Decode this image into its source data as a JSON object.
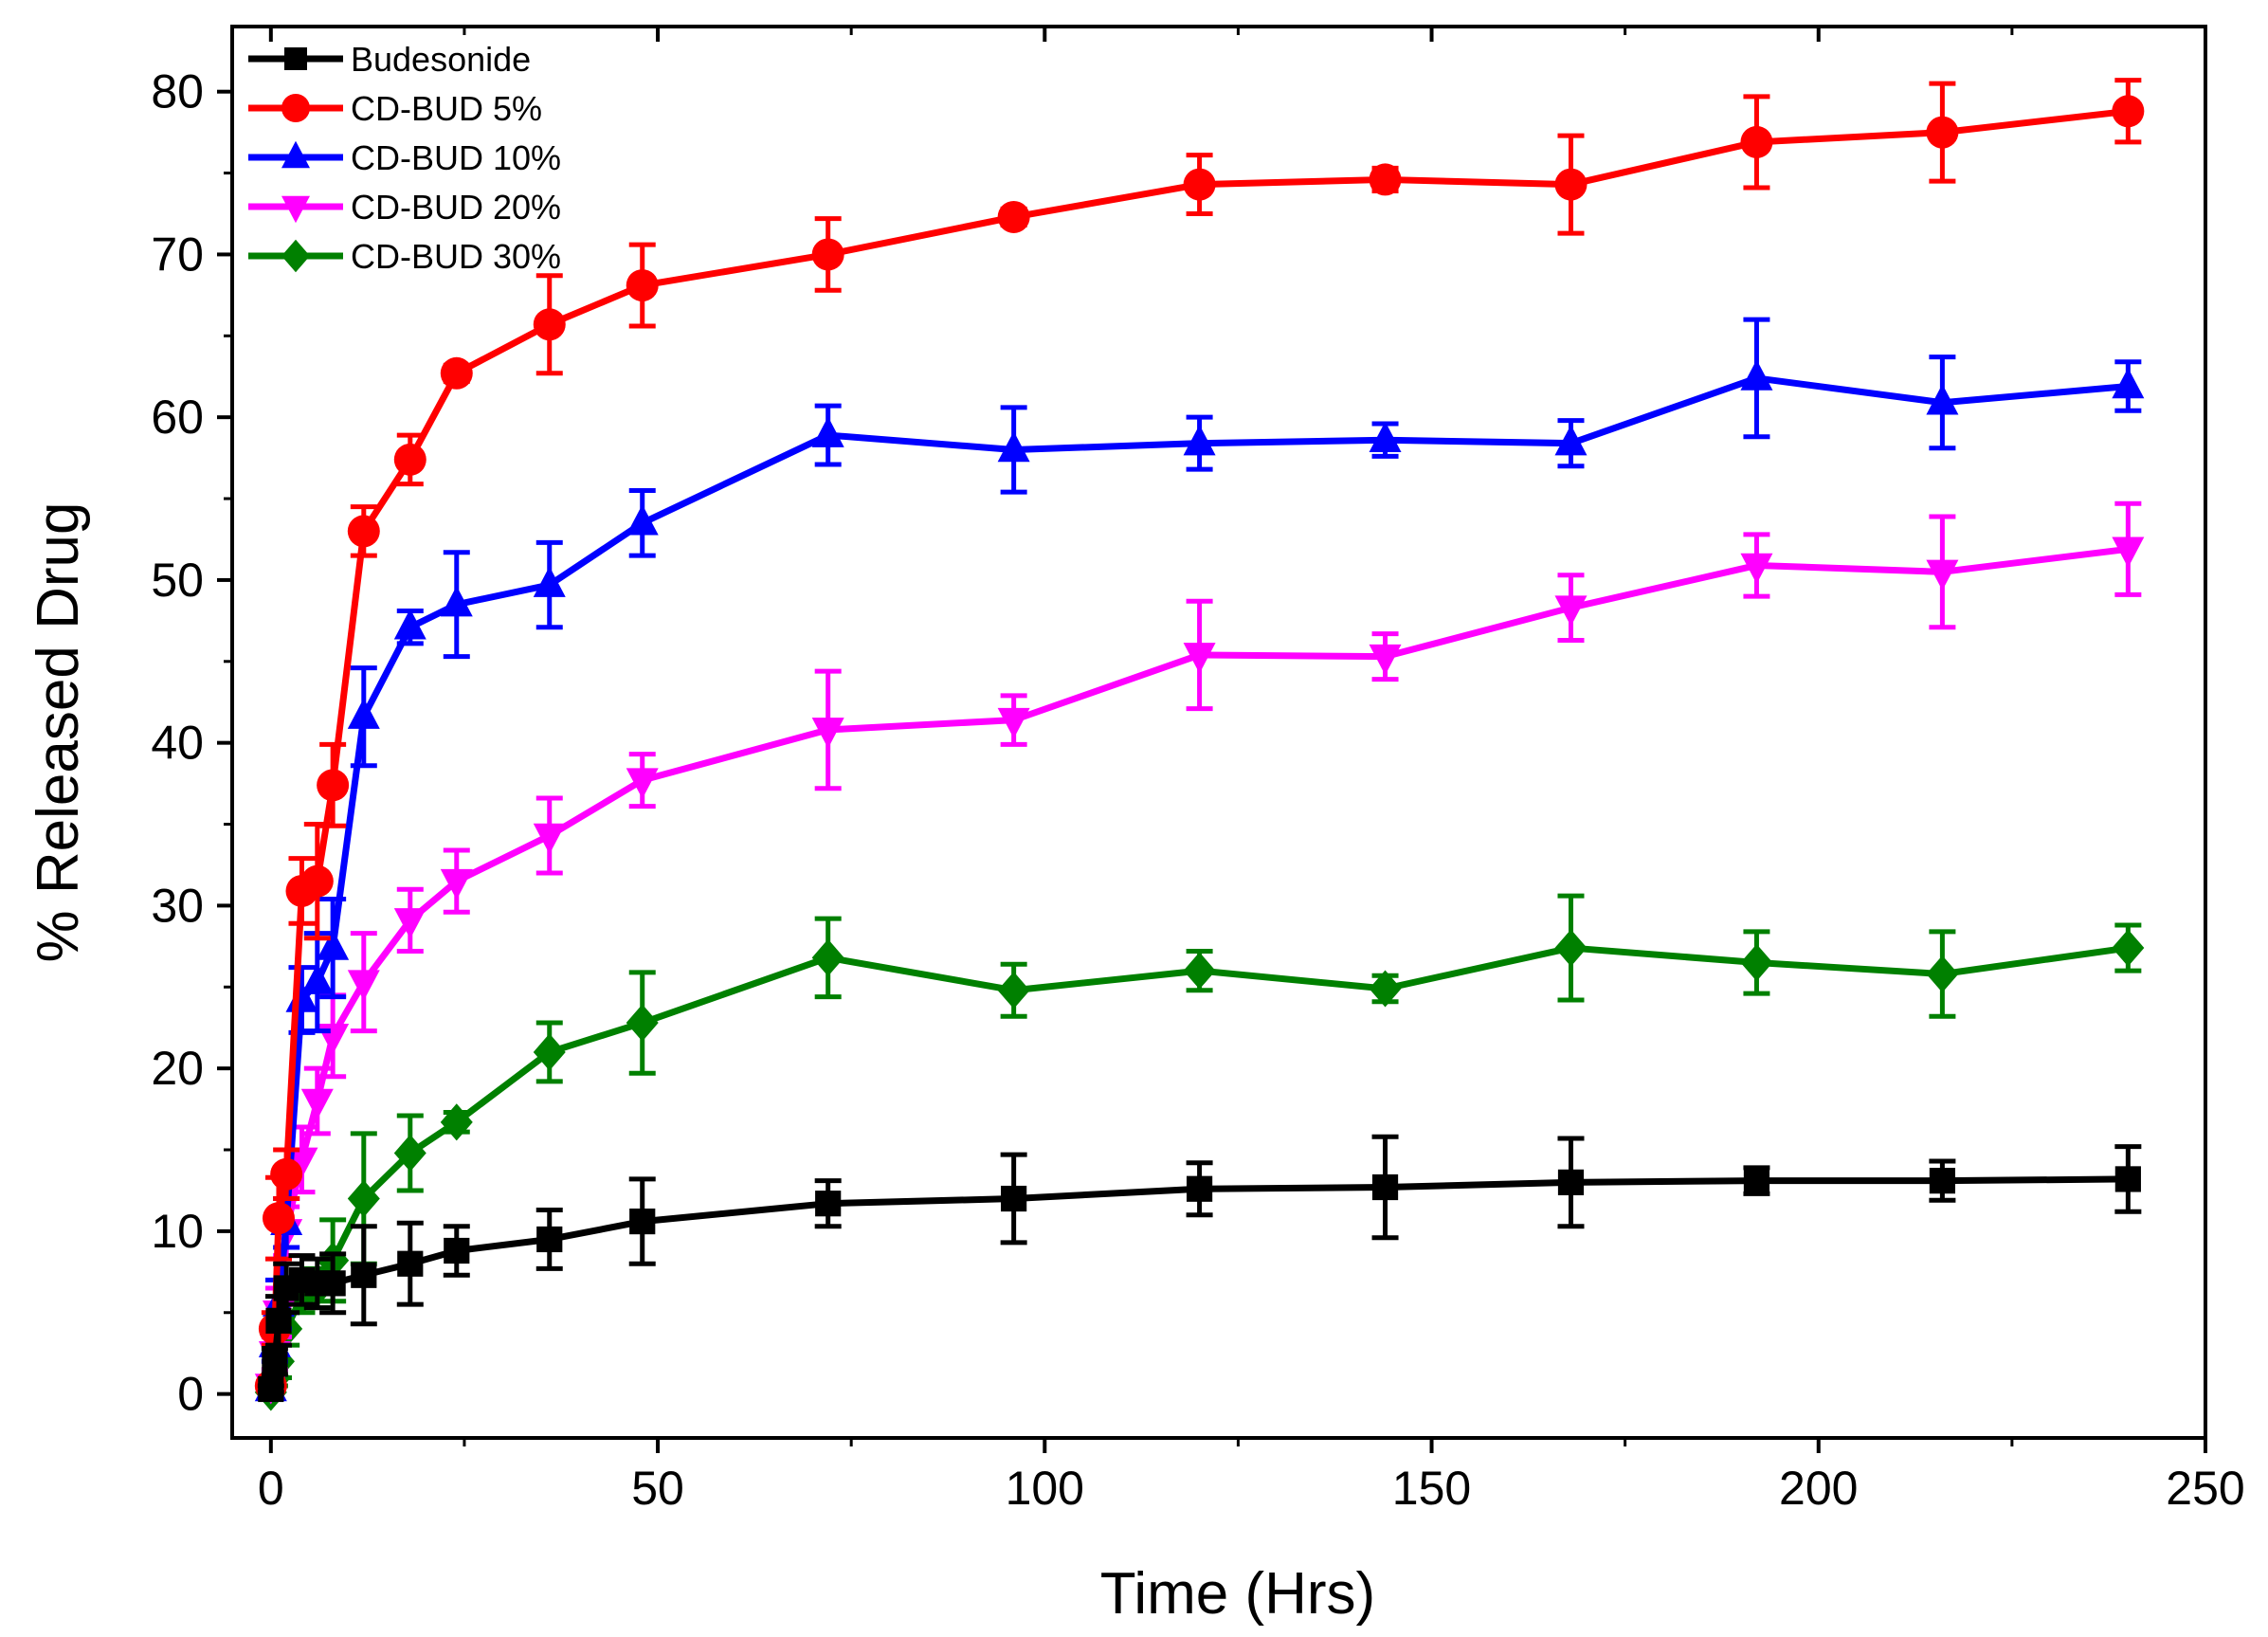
{
  "chart_data": {
    "type": "line",
    "title": "",
    "xlabel": "Time (Hrs)",
    "ylabel": "% Released Drug",
    "xlim": [
      -5,
      250
    ],
    "ylim": [
      -2.7,
      84
    ],
    "x_ticks": [
      0,
      50,
      100,
      150,
      200,
      250
    ],
    "y_ticks": [
      0,
      10,
      20,
      30,
      40,
      50,
      60,
      70,
      80
    ],
    "grid": false,
    "legend_position": "top-left",
    "x": [
      0,
      0.5,
      1,
      2,
      4,
      6,
      8,
      12,
      18,
      24,
      36,
      48,
      72,
      96,
      120,
      144,
      168,
      192,
      216,
      240
    ],
    "series": [
      {
        "name": "Budesonide",
        "color": "#000000",
        "marker": "square",
        "values": [
          0.3,
          2.0,
          4.5,
          6.5,
          7.0,
          6.8,
          6.8,
          7.3,
          8.0,
          8.8,
          9.5,
          10.6,
          11.7,
          12.0,
          12.6,
          12.7,
          13.0,
          13.1,
          13.1,
          13.2
        ],
        "errors": [
          0.2,
          0.8,
          1.5,
          1.5,
          1.5,
          1.5,
          1.8,
          3.0,
          2.5,
          1.5,
          1.8,
          2.6,
          1.4,
          2.7,
          1.6,
          3.1,
          2.7,
          0.8,
          1.2,
          2.0
        ]
      },
      {
        "name": "CD-BUD 5%",
        "color": "#ff0000",
        "marker": "circle",
        "values": [
          0.5,
          4.0,
          10.8,
          13.5,
          30.9,
          31.5,
          37.4,
          53.0,
          57.4,
          62.7,
          65.7,
          68.1,
          70.0,
          72.3,
          74.3,
          74.6,
          74.3,
          76.9,
          77.5,
          78.8
        ],
        "errors": [
          0.3,
          1.0,
          2.5,
          1.5,
          2.0,
          3.5,
          2.5,
          1.5,
          1.5,
          0.5,
          3.0,
          2.5,
          2.2,
          0.5,
          1.8,
          0.7,
          3.0,
          2.8,
          3.0,
          1.9
        ]
      },
      {
        "name": "CD-BUD 10%",
        "color": "#0000ff",
        "marker": "triangle-up",
        "values": [
          0.3,
          3.0,
          5.5,
          10.5,
          24.2,
          25.3,
          27.4,
          41.6,
          47.1,
          48.5,
          49.7,
          53.5,
          58.9,
          58.0,
          58.4,
          58.6,
          58.4,
          62.4,
          60.9,
          61.9
        ],
        "errors": [
          0.2,
          1.0,
          1.5,
          1.5,
          2.0,
          3.0,
          3.0,
          3.0,
          1.0,
          3.2,
          2.6,
          2.0,
          1.8,
          2.6,
          1.6,
          1.0,
          1.4,
          3.6,
          2.8,
          1.5
        ]
      },
      {
        "name": "CD-BUD 20%",
        "color": "#ff00ff",
        "marker": "triangle-down",
        "values": [
          0.5,
          2.5,
          5.0,
          10.0,
          14.4,
          18.0,
          22.0,
          25.3,
          29.1,
          31.5,
          34.3,
          37.7,
          40.8,
          41.4,
          45.4,
          45.3,
          48.3,
          50.9,
          50.5,
          51.9
        ],
        "errors": [
          0.3,
          1.0,
          1.5,
          1.5,
          2.0,
          2.0,
          2.5,
          3.0,
          1.9,
          1.9,
          2.3,
          1.6,
          3.6,
          1.5,
          3.3,
          1.4,
          2.0,
          1.9,
          3.4,
          2.8
        ]
      },
      {
        "name": "CD-BUD 30%",
        "color": "#008000",
        "marker": "diamond",
        "values": [
          0.1,
          1.0,
          2.0,
          4.0,
          6.0,
          6.5,
          8.2,
          12.0,
          14.8,
          16.7,
          21.0,
          22.8,
          26.8,
          24.8,
          26.0,
          24.9,
          27.4,
          26.5,
          25.8,
          27.4
        ],
        "errors": [
          0.2,
          0.5,
          1.0,
          1.0,
          1.0,
          1.2,
          2.5,
          4.0,
          2.3,
          0.6,
          1.8,
          3.1,
          2.4,
          1.6,
          1.2,
          0.8,
          3.2,
          1.9,
          2.6,
          1.4
        ]
      }
    ]
  }
}
